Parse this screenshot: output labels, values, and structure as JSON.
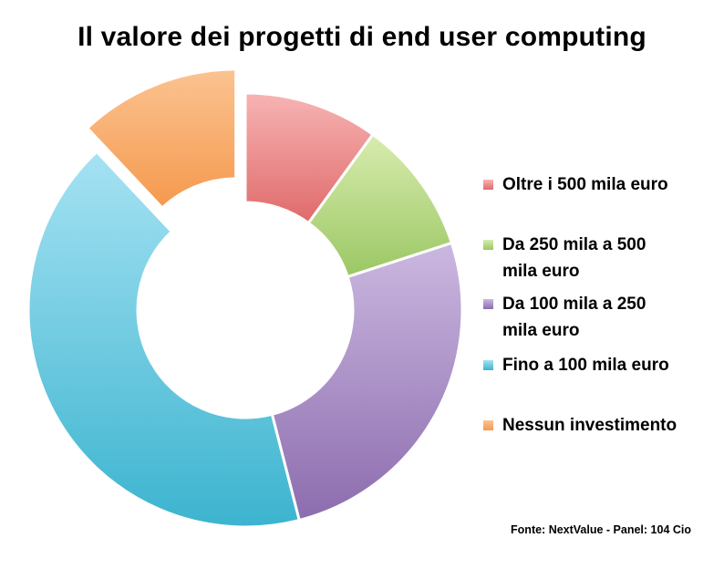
{
  "chart_data": {
    "type": "pie",
    "title": "Il valore dei progetti di end user computing",
    "donut": true,
    "exploded_slice": "Nessun investimento",
    "legend_placement": "right",
    "slices": [
      {
        "label": "Oltre i 500 mila euro",
        "value": 10,
        "color": "#e06a6a",
        "color_light": "#f7b4b4"
      },
      {
        "label": "Da 250 mila a 500 mila euro",
        "value": 10,
        "color": "#9bc764",
        "color_light": "#d8ecae"
      },
      {
        "label": "Da 100 mila a 250 mila euro",
        "value": 26,
        "color": "#8c6cae",
        "color_light": "#cbb8e0"
      },
      {
        "label": "Fino a 100 mila euro",
        "value": 42,
        "color": "#3cb4cf",
        "color_light": "#a6e2f3"
      },
      {
        "label": "Nessun investimento",
        "value": 12,
        "color": "#f5994e",
        "color_light": "#fbc391"
      }
    ]
  },
  "source": "Fonte: NextValue - Panel: 104 Cio"
}
